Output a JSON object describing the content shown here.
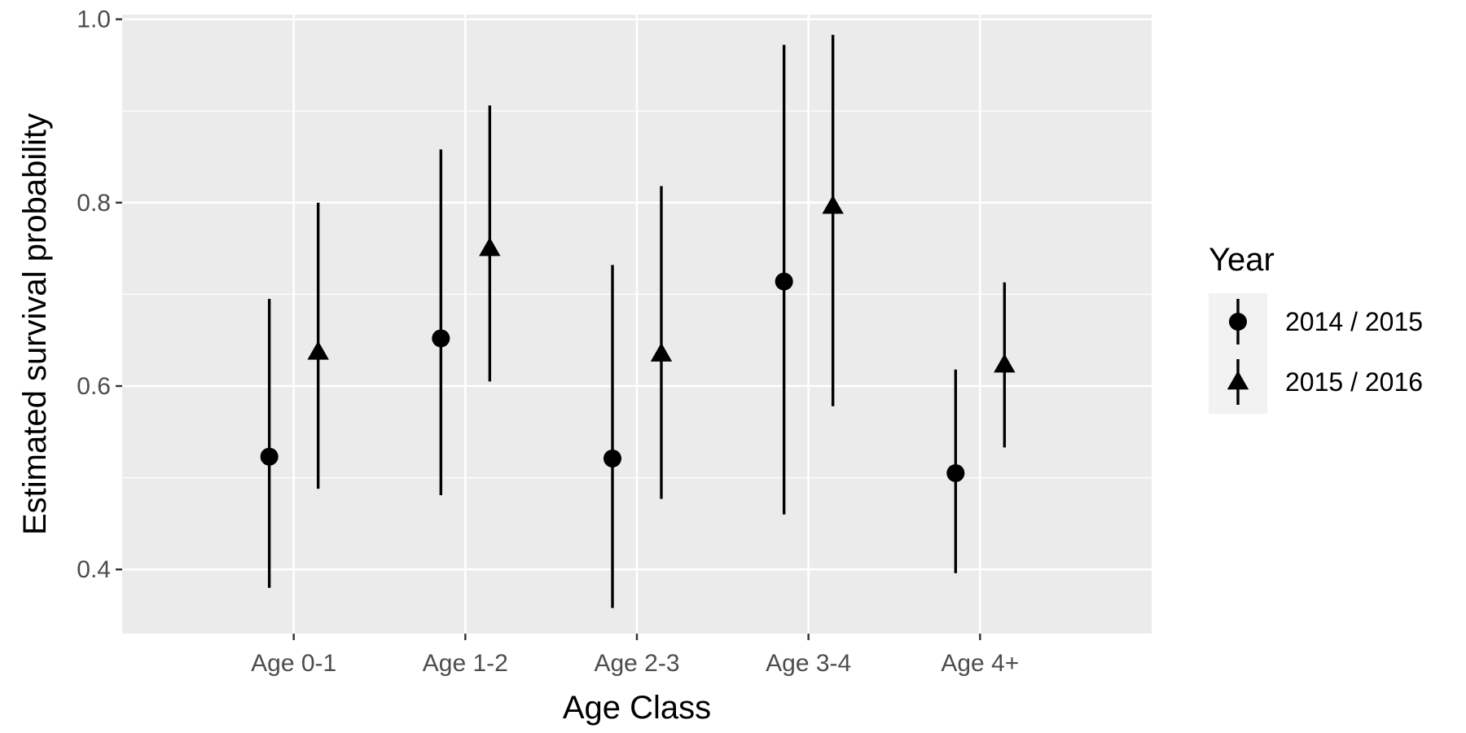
{
  "chart_data": {
    "type": "scatter",
    "subtype": "point-range",
    "title": "",
    "xlabel": "Age Class",
    "ylabel": "Estimated survival probability",
    "categories": [
      "Age 0-1",
      "Age 1-2",
      "Age 2-3",
      "Age 3-4",
      "Age 4+"
    ],
    "ylim": [
      0.33,
      1.005
    ],
    "yticks": [
      0.4,
      0.6,
      0.8,
      1.0
    ],
    "ytick_labels": [
      "0.4",
      "0.6",
      "0.8",
      "1.0"
    ],
    "grid": true,
    "legend": {
      "title": "Year",
      "position": "right"
    },
    "series": [
      {
        "name": "2014 / 2015",
        "marker": "circle",
        "values": [
          0.523,
          0.652,
          0.521,
          0.714,
          0.505
        ],
        "lower": [
          0.38,
          0.481,
          0.358,
          0.46,
          0.396
        ],
        "upper": [
          0.695,
          0.858,
          0.732,
          0.972,
          0.618
        ]
      },
      {
        "name": "2015 / 2016",
        "marker": "triangle",
        "values": [
          0.637,
          0.75,
          0.635,
          0.796,
          0.623
        ],
        "lower": [
          0.488,
          0.605,
          0.477,
          0.578,
          0.533
        ],
        "upper": [
          0.8,
          0.906,
          0.818,
          0.983,
          0.713
        ]
      }
    ],
    "colors": {
      "panel_background": "#ebebeb",
      "grid": "#ffffff",
      "marks": "#000000",
      "tick_text": "#4d4d4d"
    }
  }
}
